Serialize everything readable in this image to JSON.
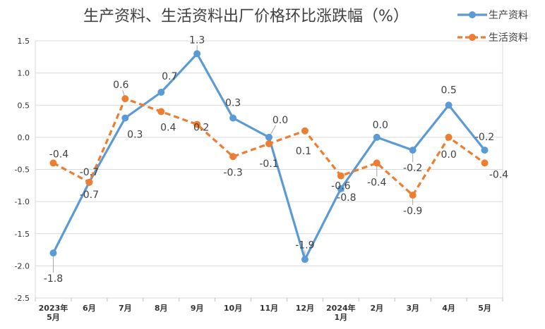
{
  "chart_data": {
    "type": "line",
    "title": "生产资料、生活资料出厂价格环比涨跌幅（%）",
    "categories": [
      [
        "2023年",
        "5月"
      ],
      [
        "6月"
      ],
      [
        "7月"
      ],
      [
        "8月"
      ],
      [
        "9月"
      ],
      [
        "10月"
      ],
      [
        "11月"
      ],
      [
        "12月"
      ],
      [
        "2024年",
        "1月"
      ],
      [
        "2月"
      ],
      [
        "3月"
      ],
      [
        "4月"
      ],
      [
        "5月"
      ]
    ],
    "ylim": [
      -2.5,
      1.5
    ],
    "yticks": [
      "1.5",
      "1.0",
      "0.5",
      "0.0",
      "-0.5",
      "-1.0",
      "-1.5",
      "-2.0",
      "-2.5"
    ],
    "ytick_values": [
      1.5,
      1.0,
      0.5,
      0.0,
      -0.5,
      -1.0,
      -1.5,
      -2.0,
      -2.5
    ],
    "grid": true,
    "legend": "top-right",
    "series": [
      {
        "name": "生产资料",
        "color": "#5B9BD5",
        "style": "solid",
        "values": [
          -1.8,
          -0.7,
          0.3,
          0.7,
          1.3,
          0.3,
          0.0,
          -1.9,
          -0.8,
          0.0,
          -0.2,
          0.5,
          -0.2
        ],
        "labels": [
          "-1.8",
          "-0.7",
          "0.3",
          "0.7",
          "1.3",
          "0.3",
          "0.0",
          "-1.9",
          "-0.8",
          "0.0",
          "-0.2",
          "0.5",
          "-0.2"
        ]
      },
      {
        "name": "生活资料",
        "color": "#ED7D31",
        "style": "dashed",
        "values": [
          -0.4,
          -0.7,
          0.6,
          0.4,
          0.2,
          -0.3,
          -0.1,
          0.1,
          -0.6,
          -0.4,
          -0.9,
          0.0,
          -0.4
        ],
        "labels": [
          "-0.4",
          "-0.7",
          "0.6",
          "0.4",
          "0.2",
          "-0.3",
          "-0.1",
          "0.1",
          "-0.6",
          "-0.4",
          "-0.9",
          "0.0",
          "-0.4"
        ]
      }
    ]
  }
}
